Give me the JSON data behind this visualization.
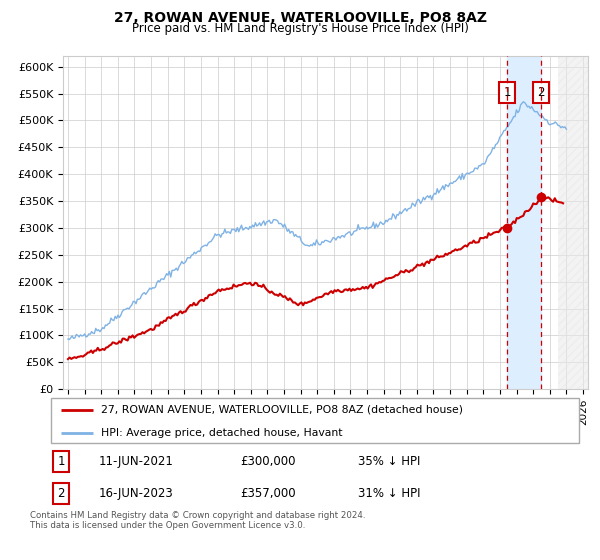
{
  "title": "27, ROWAN AVENUE, WATERLOOVILLE, PO8 8AZ",
  "subtitle": "Price paid vs. HM Land Registry's House Price Index (HPI)",
  "legend_line1": "27, ROWAN AVENUE, WATERLOOVILLE, PO8 8AZ (detached house)",
  "legend_line2": "HPI: Average price, detached house, Havant",
  "footnote": "Contains HM Land Registry data © Crown copyright and database right 2024.\nThis data is licensed under the Open Government Licence v3.0.",
  "sale1_date": "11-JUN-2021",
  "sale1_price": "£300,000",
  "sale1_hpi": "35% ↓ HPI",
  "sale2_date": "16-JUN-2023",
  "sale2_price": "£357,000",
  "sale2_hpi": "31% ↓ HPI",
  "hpi_color": "#7fb2e5",
  "price_color": "#cc0000",
  "marker1_x": 2021.44,
  "marker1_y": 300000,
  "marker2_x": 2023.45,
  "marker2_y": 357000,
  "shade_color": "#ddeeff",
  "ylim_min": 0,
  "ylim_max": 620000,
  "xlim_min": 1994.7,
  "xlim_max": 2026.3,
  "yticks": [
    0,
    50000,
    100000,
    150000,
    200000,
    250000,
    300000,
    350000,
    400000,
    450000,
    500000,
    550000,
    600000
  ],
  "xticks": [
    1995,
    1996,
    1997,
    1998,
    1999,
    2000,
    2001,
    2002,
    2003,
    2004,
    2005,
    2006,
    2007,
    2008,
    2009,
    2010,
    2011,
    2012,
    2013,
    2014,
    2015,
    2016,
    2017,
    2018,
    2019,
    2020,
    2021,
    2022,
    2023,
    2024,
    2025,
    2026
  ]
}
